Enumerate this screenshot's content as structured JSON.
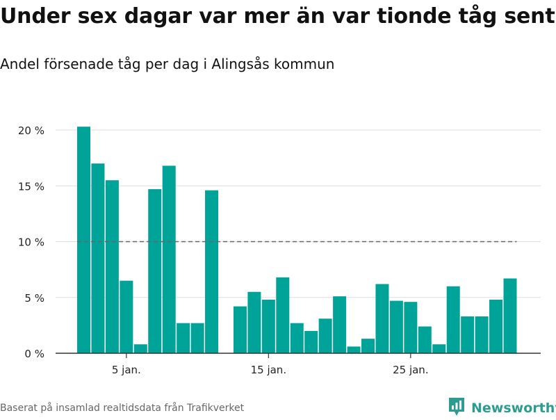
{
  "header": {
    "title": "Under sex dagar var mer än var tionde tåg sent",
    "subtitle": "Andel försenade tåg per dag i Alingsås kommun"
  },
  "footer": {
    "source": "Baserat på insamlad realtidsdata från Trafikverket",
    "brand": "Newsworthy"
  },
  "colors": {
    "bar": "#00a398",
    "reference_line": "#666666",
    "grid": "#dddddd",
    "brand": "#2a9d8f"
  },
  "chart_data": {
    "type": "bar",
    "title": "",
    "xlabel": "",
    "ylabel": "",
    "ylim": [
      0,
      20
    ],
    "yticks": [
      0,
      5,
      10,
      15,
      20
    ],
    "ytick_labels": [
      "0 %",
      "5 %",
      "10 %",
      "15 %",
      "20 %"
    ],
    "x_day_first": 2,
    "xticks": [
      5,
      15,
      25
    ],
    "xtick_labels": [
      "5 jan.",
      "15 jan.",
      "25 jan."
    ],
    "days": [
      2,
      3,
      4,
      5,
      6,
      7,
      8,
      9,
      10,
      11,
      13,
      14,
      15,
      16,
      17,
      18,
      19,
      20,
      21,
      22,
      23,
      24,
      25,
      26,
      27,
      28,
      29,
      30,
      31,
      32
    ],
    "values": [
      20.3,
      17.0,
      15.5,
      6.5,
      0.8,
      14.7,
      16.8,
      2.7,
      2.7,
      14.6,
      4.2,
      5.5,
      4.8,
      6.8,
      2.7,
      2.0,
      3.1,
      5.1,
      0.6,
      1.3,
      6.2,
      4.7,
      4.6,
      2.4,
      0.8,
      6.0,
      3.3,
      3.3,
      4.8,
      6.7
    ],
    "reference_line": {
      "value": 10,
      "style": "dashed"
    },
    "grid": true,
    "legend": "none"
  }
}
